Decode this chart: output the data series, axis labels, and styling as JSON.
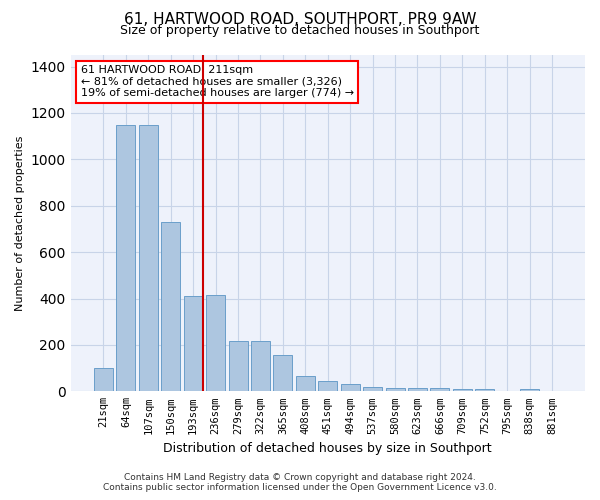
{
  "title": "61, HARTWOOD ROAD, SOUTHPORT, PR9 9AW",
  "subtitle": "Size of property relative to detached houses in Southport",
  "xlabel": "Distribution of detached houses by size in Southport",
  "ylabel": "Number of detached properties",
  "categories": [
    "21sqm",
    "64sqm",
    "107sqm",
    "150sqm",
    "193sqm",
    "236sqm",
    "279sqm",
    "322sqm",
    "365sqm",
    "408sqm",
    "451sqm",
    "494sqm",
    "537sqm",
    "580sqm",
    "623sqm",
    "666sqm",
    "709sqm",
    "752sqm",
    "795sqm",
    "838sqm",
    "881sqm"
  ],
  "values": [
    100,
    1150,
    1150,
    730,
    410,
    415,
    215,
    215,
    155,
    65,
    45,
    30,
    20,
    15,
    15,
    15,
    12,
    8,
    0,
    10,
    0
  ],
  "bar_color": "#adc6e0",
  "bar_edge_color": "#6a9fca",
  "marker_index": 4,
  "marker_color": "#cc0000",
  "ylim": [
    0,
    1450
  ],
  "yticks": [
    0,
    200,
    400,
    600,
    800,
    1000,
    1200,
    1400
  ],
  "annotation_title": "61 HARTWOOD ROAD: 211sqm",
  "annotation_line1": "← 81% of detached houses are smaller (3,326)",
  "annotation_line2": "19% of semi-detached houses are larger (774) →",
  "footer_line1": "Contains HM Land Registry data © Crown copyright and database right 2024.",
  "footer_line2": "Contains public sector information licensed under the Open Government Licence v3.0.",
  "background_color": "#eef2fb",
  "grid_color": "#c8d4e8",
  "title_fontsize": 11,
  "subtitle_fontsize": 9,
  "ylabel_fontsize": 8,
  "xlabel_fontsize": 9,
  "tick_fontsize": 7.5,
  "annotation_fontsize": 8,
  "footer_fontsize": 6.5
}
